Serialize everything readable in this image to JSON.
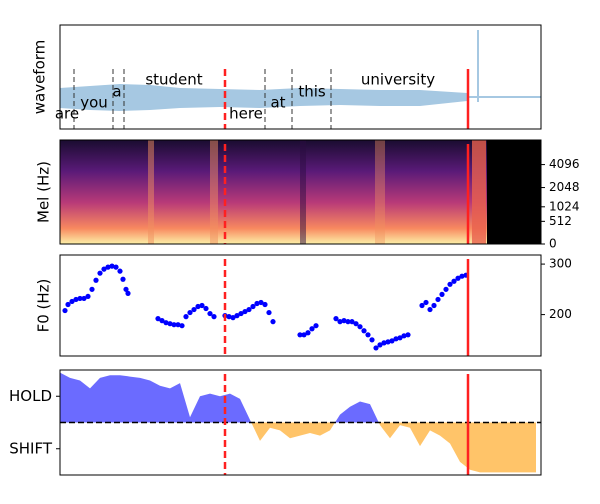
{
  "chart_data": [
    {
      "type": "words",
      "ylabel": "waveform",
      "words": [
        "are",
        "you",
        "a",
        "student",
        "here",
        "at",
        "this",
        "university"
      ],
      "word_x": [
        7,
        34,
        57,
        114,
        186,
        218,
        252,
        338
      ],
      "boundaries": [
        14,
        53,
        64,
        205,
        232,
        271
      ],
      "xlim": [
        0,
        481
      ]
    },
    {
      "type": "spectrogram",
      "ylabel": "Mel (Hz)",
      "yscale": "mel",
      "ylim": [
        0,
        8000
      ],
      "yticks": [
        0,
        512,
        1024,
        2048,
        4096
      ],
      "xlim": [
        0,
        481
      ]
    },
    {
      "type": "scatter",
      "ylabel": "F0 (Hz)",
      "color": "#0000ff",
      "x": [
        5,
        8,
        12,
        16,
        20,
        24,
        28,
        32,
        36,
        40,
        44,
        48,
        52,
        56,
        60,
        63,
        66,
        68,
        98,
        102,
        106,
        110,
        114,
        118,
        122,
        126,
        130,
        134,
        138,
        142,
        146,
        150,
        154,
        165,
        169,
        173,
        177,
        181,
        185,
        189,
        193,
        197,
        201,
        205,
        209,
        213,
        240,
        244,
        248,
        252,
        256,
        276,
        280,
        284,
        288,
        292,
        296,
        300,
        304,
        308,
        312,
        316,
        320,
        324,
        328,
        332,
        336,
        340,
        344,
        348,
        362,
        366,
        370,
        374,
        378,
        382,
        386,
        390,
        394,
        398,
        402,
        406
      ],
      "values": [
        208,
        220,
        226,
        230,
        232,
        232,
        236,
        250,
        268,
        282,
        290,
        294,
        296,
        294,
        286,
        270,
        250,
        242,
        192,
        188,
        184,
        182,
        180,
        180,
        178,
        196,
        204,
        210,
        216,
        218,
        212,
        202,
        196,
        198,
        196,
        194,
        198,
        202,
        206,
        210,
        216,
        222,
        224,
        220,
        204,
        186,
        160,
        160,
        164,
        172,
        178,
        192,
        186,
        188,
        186,
        186,
        182,
        176,
        168,
        160,
        150,
        134,
        140,
        144,
        146,
        148,
        152,
        154,
        158,
        160,
        218,
        224,
        210,
        218,
        230,
        240,
        250,
        260,
        266,
        272,
        276,
        278
      ],
      "ylim": [
        118,
        318
      ],
      "yticks": [
        200,
        300
      ],
      "xlim": [
        0,
        481
      ]
    },
    {
      "type": "area",
      "pos_color": "#6b6bff",
      "neg_color": "#ffc469",
      "x": [
        0,
        10,
        20,
        30,
        40,
        50,
        60,
        70,
        80,
        90,
        100,
        110,
        120,
        130,
        140,
        150,
        160,
        170,
        180,
        190,
        200,
        210,
        220,
        230,
        240,
        250,
        260,
        270,
        280,
        290,
        300,
        310,
        320,
        330,
        340,
        350,
        360,
        370,
        380,
        390,
        400,
        410,
        420,
        430,
        440,
        450,
        460,
        470,
        476
      ],
      "values": [
        1.9,
        1.7,
        1.6,
        1.3,
        1.7,
        1.8,
        1.8,
        1.75,
        1.7,
        1.6,
        1.4,
        1.3,
        1.5,
        0.2,
        1.0,
        1.1,
        1.0,
        1.1,
        0.9,
        0.1,
        -0.7,
        -0.2,
        -0.3,
        -0.6,
        -0.5,
        -0.4,
        -0.5,
        -0.3,
        0.3,
        0.6,
        0.8,
        0.7,
        -0.1,
        -0.6,
        -0.1,
        -0.2,
        -0.9,
        -0.3,
        -0.5,
        -0.8,
        -1.5,
        -1.8,
        -1.9,
        -1.9,
        -1.9,
        -1.9,
        -1.9,
        -1.9,
        -1.9
      ],
      "ylim": [
        -2,
        2
      ],
      "yticks": [
        {
          "value": 1,
          "label": "HOLD"
        },
        {
          "value": -1,
          "label": "SHIFT"
        }
      ],
      "zero_line": true,
      "xlim": [
        0,
        481
      ]
    }
  ],
  "markers": {
    "x": [
      165,
      408
    ],
    "styles": [
      "dashed",
      "solid"
    ],
    "color": "#ff2020"
  }
}
